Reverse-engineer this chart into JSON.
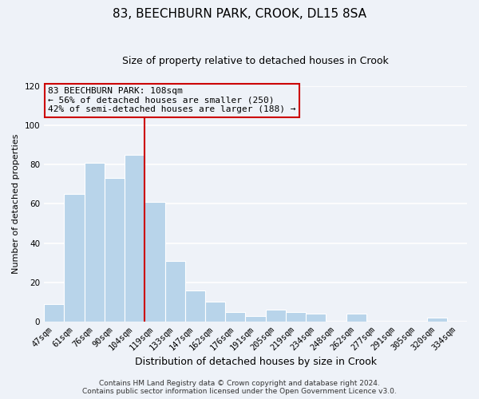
{
  "title": "83, BEECHBURN PARK, CROOK, DL15 8SA",
  "subtitle": "Size of property relative to detached houses in Crook",
  "xlabel": "Distribution of detached houses by size in Crook",
  "ylabel": "Number of detached properties",
  "categories": [
    "47sqm",
    "61sqm",
    "76sqm",
    "90sqm",
    "104sqm",
    "119sqm",
    "133sqm",
    "147sqm",
    "162sqm",
    "176sqm",
    "191sqm",
    "205sqm",
    "219sqm",
    "234sqm",
    "248sqm",
    "262sqm",
    "277sqm",
    "291sqm",
    "305sqm",
    "320sqm",
    "334sqm"
  ],
  "values": [
    9,
    65,
    81,
    73,
    85,
    61,
    31,
    16,
    10,
    5,
    3,
    6,
    5,
    4,
    0,
    4,
    0,
    0,
    0,
    2,
    0
  ],
  "bar_color": "#b8d4ea",
  "bar_edge_color": "#ffffff",
  "highlight_line_color": "#cc0000",
  "annotation_box_color": "#cc0000",
  "annotation_title": "83 BEECHBURN PARK: 108sqm",
  "annotation_line1": "← 56% of detached houses are smaller (250)",
  "annotation_line2": "42% of semi-detached houses are larger (188) →",
  "ylim": [
    0,
    120
  ],
  "yticks": [
    0,
    20,
    40,
    60,
    80,
    100,
    120
  ],
  "footer_line1": "Contains HM Land Registry data © Crown copyright and database right 2024.",
  "footer_line2": "Contains public sector information licensed under the Open Government Licence v3.0.",
  "background_color": "#eef2f8",
  "grid_color": "#ffffff",
  "title_fontsize": 11,
  "subtitle_fontsize": 9,
  "xlabel_fontsize": 9,
  "ylabel_fontsize": 8,
  "tick_fontsize": 7.5,
  "annotation_fontsize": 8,
  "footer_fontsize": 6.5
}
